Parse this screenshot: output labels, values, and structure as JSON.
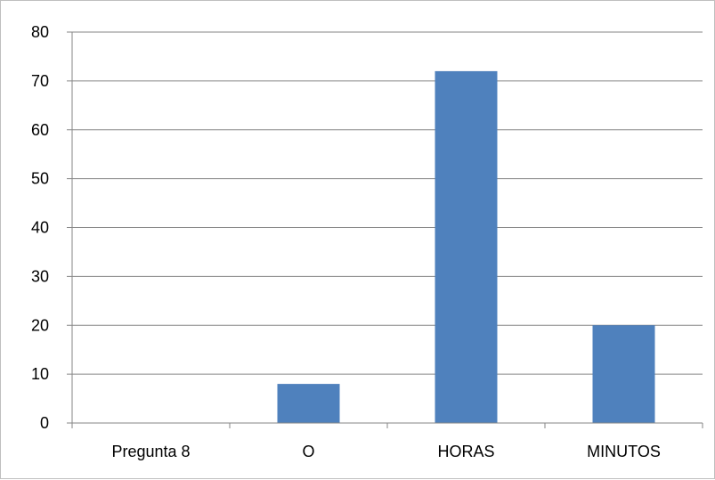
{
  "chart_data": {
    "type": "bar",
    "categories": [
      "Pregunta 8",
      "O",
      "HORAS",
      "MINUTOS"
    ],
    "values": [
      0,
      8,
      72,
      20
    ],
    "title": "",
    "xlabel": "",
    "ylabel": "",
    "ylim": [
      0,
      80
    ],
    "yticks": [
      0,
      10,
      20,
      30,
      40,
      50,
      60,
      70,
      80
    ],
    "grid": true,
    "legend": "none",
    "bar_color": "#4f81bd",
    "gridline_color": "#868686"
  }
}
